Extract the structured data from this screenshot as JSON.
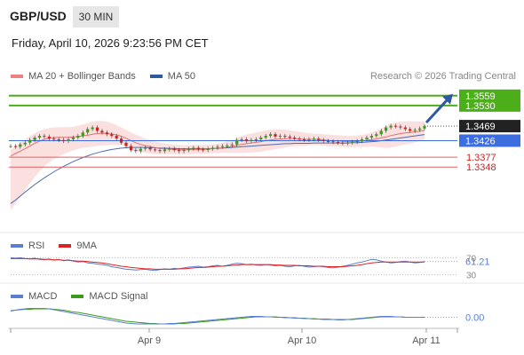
{
  "header": {
    "pair": "GBP/USD",
    "timeframe": "30 MIN",
    "datetime": "Friday, April 10, 2026 9:23:56 PM CET",
    "credit": "Research © 2026 Trading Central"
  },
  "legend_main": [
    {
      "label": "MA 20 + Bollinger Bands",
      "color": "#f08080"
    },
    {
      "label": "MA 50",
      "color": "#2f5aa0"
    }
  ],
  "legend_rsi": [
    {
      "label": "RSI",
      "color": "#5a7fd0"
    },
    {
      "label": "9MA",
      "color": "#dd2222"
    }
  ],
  "legend_macd": [
    {
      "label": "MACD",
      "color": "#5a7fd0"
    },
    {
      "label": "MACD Signal",
      "color": "#3a9a1a"
    }
  ],
  "colors": {
    "resistance": "#4caf1a",
    "support": "#e06060",
    "pivot": "#3d6ee0",
    "current": "#222222",
    "up_candle": "#3a9a1a",
    "down_candle": "#cc2222"
  },
  "chart_data": [
    {
      "type": "line",
      "panel": "price",
      "ylim": [
        1.317,
        1.359
      ],
      "x_ticks": [
        "Apr 9",
        "Apr 10",
        "Apr 11"
      ],
      "levels": [
        {
          "label": "1.3559",
          "value": 1.3559,
          "kind": "resistance"
        },
        {
          "label": "1.3530",
          "value": 1.353,
          "kind": "resistance"
        },
        {
          "label": "1.3469",
          "value": 1.3469,
          "kind": "current"
        },
        {
          "label": "1.3426",
          "value": 1.3426,
          "kind": "pivot"
        },
        {
          "label": "1.3377",
          "value": 1.3377,
          "kind": "support"
        },
        {
          "label": "1.3348",
          "value": 1.3348,
          "kind": "support"
        }
      ],
      "close": [
        1.341,
        1.3408,
        1.3415,
        1.342,
        1.3428,
        1.3435,
        1.344,
        1.3438,
        1.3432,
        1.343,
        1.3428,
        1.3425,
        1.343,
        1.3435,
        1.344,
        1.345,
        1.346,
        1.3465,
        1.3455,
        1.345,
        1.3445,
        1.344,
        1.3432,
        1.342,
        1.341,
        1.3398,
        1.3395,
        1.3402,
        1.3405,
        1.34,
        1.3398,
        1.3395,
        1.34,
        1.3402,
        1.3398,
        1.3395,
        1.3398,
        1.3402,
        1.3405,
        1.34,
        1.3398,
        1.3402,
        1.3405,
        1.3408,
        1.341,
        1.3412,
        1.3415,
        1.3428,
        1.343,
        1.3425,
        1.3428,
        1.343,
        1.3435,
        1.344,
        1.3445,
        1.3438,
        1.344,
        1.3438,
        1.3435,
        1.3432,
        1.343,
        1.3428,
        1.343,
        1.3432,
        1.3428,
        1.3425,
        1.3424,
        1.3422,
        1.342,
        1.3418,
        1.342,
        1.3422,
        1.3425,
        1.343,
        1.3435,
        1.344,
        1.3445,
        1.3455,
        1.3465,
        1.347,
        1.3468,
        1.3465,
        1.346,
        1.3455,
        1.3458,
        1.3462,
        1.3469
      ],
      "ma20": [
        1.338,
        1.3388,
        1.3395,
        1.3402,
        1.341,
        1.3418,
        1.3425,
        1.343,
        1.3433,
        1.3435,
        1.3436,
        1.3436,
        1.3436,
        1.3437,
        1.3438,
        1.344,
        1.3442,
        1.3445,
        1.3447,
        1.3448,
        1.3447,
        1.3446,
        1.3443,
        1.3439,
        1.3433,
        1.3426,
        1.342,
        1.3415,
        1.3411,
        1.3408,
        1.3405,
        1.3403,
        1.3402,
        1.3401,
        1.34,
        1.3399,
        1.3399,
        1.3399,
        1.34,
        1.34,
        1.34,
        1.3401,
        1.3402,
        1.3403,
        1.3405,
        1.3407,
        1.3409,
        1.3412,
        1.3415,
        1.3417,
        1.3419,
        1.3421,
        1.3423,
        1.3426,
        1.3428,
        1.343,
        1.3431,
        1.3432,
        1.3432,
        1.3432,
        1.3431,
        1.343,
        1.343,
        1.343,
        1.3429,
        1.3428,
        1.3427,
        1.3426,
        1.3425,
        1.3424,
        1.3423,
        1.3423,
        1.3424,
        1.3425,
        1.3427,
        1.3429,
        1.3431,
        1.3434,
        1.3437,
        1.3441,
        1.3444,
        1.3447,
        1.3449,
        1.345,
        1.3452,
        1.3454,
        1.3456
      ],
      "bb_upper": [
        1.34,
        1.341,
        1.342,
        1.343,
        1.344,
        1.3448,
        1.3455,
        1.346,
        1.3463,
        1.3465,
        1.3466,
        1.3466,
        1.3466,
        1.3467,
        1.347,
        1.3474,
        1.3478,
        1.3482,
        1.3484,
        1.3484,
        1.3482,
        1.3478,
        1.3472,
        1.3465,
        1.3458,
        1.345,
        1.3444,
        1.3438,
        1.3432,
        1.3428,
        1.3424,
        1.342,
        1.3418,
        1.3416,
        1.3414,
        1.3413,
        1.3412,
        1.3412,
        1.3413,
        1.3413,
        1.3413,
        1.3414,
        1.3415,
        1.3417,
        1.342,
        1.3424,
        1.3428,
        1.3434,
        1.344,
        1.3444,
        1.3447,
        1.345,
        1.3453,
        1.3456,
        1.3458,
        1.3459,
        1.3459,
        1.3458,
        1.3456,
        1.3454,
        1.3452,
        1.345,
        1.3448,
        1.3447,
        1.3446,
        1.3445,
        1.3444,
        1.3443,
        1.3442,
        1.3441,
        1.344,
        1.344,
        1.3441,
        1.3443,
        1.3446,
        1.345,
        1.3455,
        1.3462,
        1.347,
        1.3476,
        1.348,
        1.3482,
        1.3483,
        1.3483,
        1.3483,
        1.3483,
        1.3483
      ],
      "bb_lower": [
        1.322,
        1.324,
        1.326,
        1.328,
        1.33,
        1.3318,
        1.3335,
        1.335,
        1.3362,
        1.3372,
        1.338,
        1.3386,
        1.3392,
        1.3397,
        1.3402,
        1.3405,
        1.3406,
        1.3408,
        1.341,
        1.3412,
        1.3412,
        1.3414,
        1.3414,
        1.3413,
        1.3408,
        1.3402,
        1.3396,
        1.3392,
        1.339,
        1.3388,
        1.3386,
        1.3386,
        1.3386,
        1.3386,
        1.3386,
        1.3385,
        1.3386,
        1.3386,
        1.3387,
        1.3387,
        1.3387,
        1.3388,
        1.3389,
        1.3389,
        1.339,
        1.339,
        1.339,
        1.339,
        1.339,
        1.339,
        1.3391,
        1.3392,
        1.3393,
        1.3396,
        1.3398,
        1.3401,
        1.3403,
        1.3406,
        1.3408,
        1.341,
        1.341,
        1.341,
        1.3412,
        1.3413,
        1.3412,
        1.3411,
        1.341,
        1.3409,
        1.3408,
        1.3407,
        1.3406,
        1.3406,
        1.3407,
        1.3407,
        1.3408,
        1.3408,
        1.3407,
        1.3406,
        1.3404,
        1.3406,
        1.3408,
        1.3412,
        1.3415,
        1.3417,
        1.3421,
        1.3425,
        1.3429
      ],
      "ma50": [
        1.324,
        1.325,
        1.3262,
        1.3274,
        1.3285,
        1.3296,
        1.3306,
        1.3316,
        1.3325,
        1.3334,
        1.3342,
        1.335,
        1.3357,
        1.3364,
        1.337,
        1.3376,
        1.3381,
        1.3386,
        1.339,
        1.3394,
        1.3397,
        1.34,
        1.3402,
        1.3404,
        1.3405,
        1.3406,
        1.3406,
        1.3406,
        1.3406,
        1.3405,
        1.3405,
        1.3404,
        1.3404,
        1.3403,
        1.3403,
        1.3402,
        1.3402,
        1.3402,
        1.3402,
        1.3402,
        1.3402,
        1.3402,
        1.3403,
        1.3403,
        1.3404,
        1.3405,
        1.3406,
        1.3407,
        1.3408,
        1.3409,
        1.341,
        1.3411,
        1.3412,
        1.3413,
        1.3414,
        1.3415,
        1.3416,
        1.3417,
        1.3417,
        1.3418,
        1.3418,
        1.3418,
        1.3418,
        1.3419,
        1.3419,
        1.3419,
        1.3419,
        1.3419,
        1.3419,
        1.3419,
        1.3419,
        1.342,
        1.342,
        1.3421,
        1.3422,
        1.3423,
        1.3424,
        1.3426,
        1.3428,
        1.343,
        1.3432,
        1.3434,
        1.3436,
        1.3438,
        1.344,
        1.3442,
        1.3444
      ]
    },
    {
      "type": "line",
      "panel": "rsi",
      "ylim": [
        25,
        75
      ],
      "labels": [
        {
          "label": "70",
          "value": 70
        },
        {
          "label": "30",
          "value": 30
        }
      ],
      "value_label": "61.21",
      "rsi": [
        70,
        69,
        70,
        68,
        67,
        69,
        66,
        65,
        67,
        64,
        66,
        63,
        65,
        62,
        60,
        61,
        58,
        57,
        55,
        54,
        52,
        49,
        47,
        45,
        43,
        42,
        41,
        42,
        43,
        41,
        40,
        42,
        44,
        43,
        45,
        44,
        46,
        48,
        49,
        50,
        48,
        49,
        51,
        52,
        50,
        52,
        55,
        57,
        56,
        54,
        55,
        53,
        52,
        54,
        53,
        51,
        52,
        50,
        49,
        51,
        52,
        50,
        48,
        49,
        50,
        49,
        47,
        46,
        48,
        50,
        52,
        55,
        58,
        60,
        63,
        66,
        65,
        62,
        60,
        58,
        59,
        61,
        62,
        60,
        58,
        59,
        61
      ],
      "ma9": [
        68,
        68,
        68,
        68,
        67,
        67,
        67,
        66,
        66,
        65,
        65,
        64,
        64,
        63,
        62,
        62,
        61,
        60,
        59,
        58,
        56,
        54,
        52,
        50,
        49,
        47,
        46,
        45,
        44,
        44,
        43,
        43,
        43,
        43,
        43,
        44,
        44,
        45,
        46,
        47,
        47,
        48,
        49,
        50,
        50,
        51,
        52,
        53,
        54,
        54,
        54,
        54,
        54,
        54,
        54,
        53,
        53,
        52,
        52,
        52,
        51,
        51,
        51,
        50,
        50,
        50,
        49,
        49,
        49,
        49,
        50,
        51,
        52,
        54,
        56,
        58,
        59,
        60,
        60,
        60,
        60,
        60,
        60,
        60,
        60,
        60,
        60
      ]
    },
    {
      "type": "line",
      "panel": "macd",
      "ylim": [
        -0.0025,
        0.0025
      ],
      "value_label": "0.00",
      "macd": [
        0.0014,
        0.0016,
        0.0018,
        0.0019,
        0.002,
        0.002,
        0.002,
        0.002,
        0.0019,
        0.0017,
        0.0015,
        0.0013,
        0.0011,
        0.0009,
        0.0007,
        0.0005,
        0.0003,
        0.0001,
        -0.0001,
        -0.0003,
        -0.0005,
        -0.0007,
        -0.0009,
        -0.0011,
        -0.0013,
        -0.0014,
        -0.0015,
        -0.0015,
        -0.0015,
        -0.0015,
        -0.0015,
        -0.0015,
        -0.0015,
        -0.0014,
        -0.0014,
        -0.0013,
        -0.0012,
        -0.0011,
        -0.001,
        -0.0009,
        -0.0008,
        -0.0007,
        -0.0006,
        -0.0005,
        -0.0004,
        -0.0003,
        -0.0002,
        -0.0001,
        0.0,
        0.0001,
        0.0002,
        0.0002,
        0.0002,
        0.0001,
        0.0001,
        0.0,
        0.0,
        -0.0001,
        -0.0001,
        -0.0002,
        -0.0002,
        -0.0003,
        -0.0003,
        -0.0004,
        -0.0004,
        -0.0005,
        -0.0005,
        -0.0005,
        -0.0006,
        -0.0006,
        -0.0005,
        -0.0004,
        -0.0003,
        -0.0002,
        -0.0001,
        0.0,
        0.0001,
        0.0002,
        0.0002,
        0.0002,
        0.0001,
        0.0001,
        0.0,
        0.0,
        0.0,
        0.0,
        0.0
      ],
      "signal": [
        0.0015,
        0.0016,
        0.0017,
        0.0018,
        0.0018,
        0.0019,
        0.0019,
        0.0019,
        0.0019,
        0.0018,
        0.0017,
        0.0016,
        0.0014,
        0.0012,
        0.0011,
        0.0009,
        0.0007,
        0.0005,
        0.0003,
        0.0001,
        -0.0001,
        -0.0003,
        -0.0005,
        -0.0007,
        -0.0009,
        -0.001,
        -0.0011,
        -0.0012,
        -0.0013,
        -0.0014,
        -0.0014,
        -0.0015,
        -0.0015,
        -0.0015,
        -0.0015,
        -0.0014,
        -0.0014,
        -0.0013,
        -0.0012,
        -0.0011,
        -0.001,
        -0.0009,
        -0.0008,
        -0.0007,
        -0.0006,
        -0.0005,
        -0.0004,
        -0.0003,
        -0.0002,
        -0.0001,
        0.0,
        0.0001,
        0.0001,
        0.0001,
        0.0001,
        0.0001,
        0.0,
        0.0,
        -0.0001,
        -0.0001,
        -0.0002,
        -0.0002,
        -0.0003,
        -0.0003,
        -0.0004,
        -0.0004,
        -0.0004,
        -0.0005,
        -0.0005,
        -0.0005,
        -0.0005,
        -0.0005,
        -0.0004,
        -0.0003,
        -0.0002,
        -0.0001,
        0.0,
        0.0001,
        0.0001,
        0.0001,
        0.0001,
        0.0001,
        0.0,
        0.0,
        0.0,
        0.0,
        0.0
      ]
    }
  ]
}
